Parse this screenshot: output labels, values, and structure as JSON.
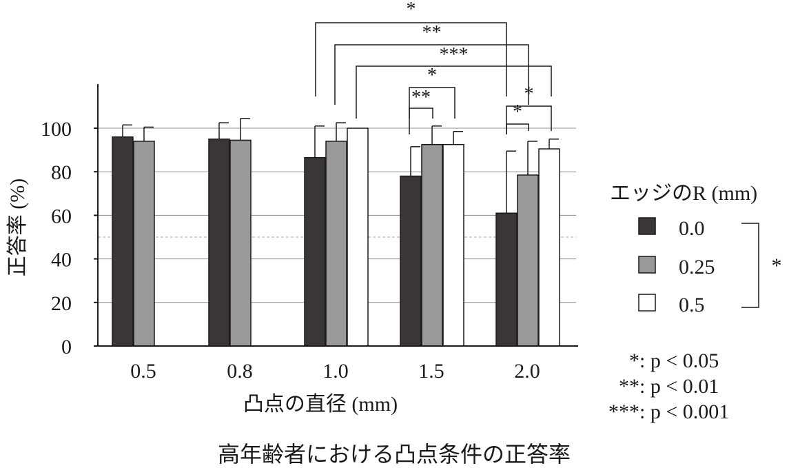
{
  "chart_data": {
    "type": "bar",
    "title": "高年齢者における凸点条件の正答率",
    "xlabel": "凸点の直径 (mm)",
    "ylabel": "正答率 (%)",
    "ylim": [
      0,
      120
    ],
    "yticks": [
      "0",
      "20",
      "40",
      "60",
      "80",
      "100"
    ],
    "ytick_values": [
      0,
      20,
      40,
      60,
      80,
      100
    ],
    "chance_line": 50,
    "categories": [
      "0.5",
      "0.8",
      "1.0",
      "1.5",
      "2.0"
    ],
    "legend_title": "エッジのR (mm)",
    "series": [
      {
        "name": "0.0",
        "color": "#3a3536",
        "values": [
          96,
          95,
          86.5,
          78,
          61
        ],
        "errors": [
          5.5,
          7.5,
          14.5,
          13.5,
          28.5
        ]
      },
      {
        "name": "0.25",
        "color": "#999999",
        "values": [
          94,
          94.5,
          94,
          92.5,
          78.5
        ],
        "errors": [
          6.5,
          10,
          8.5,
          8.5,
          15.5
        ]
      },
      {
        "name": "0.5",
        "color": "#ffffff",
        "values": [
          null,
          null,
          100,
          92.5,
          90.5
        ],
        "errors": [
          null,
          null,
          0,
          6,
          4.5
        ]
      }
    ],
    "legend_bracket_mark": "*",
    "significance": [
      {
        "mark": "*",
        "from": "1.0 / 0.0",
        "to": "2.0 / 0.0"
      },
      {
        "mark": "**",
        "from": "1.0 / 0.25",
        "to": "2.0 / 0.25"
      },
      {
        "mark": "***",
        "from": "1.0 / 0.5",
        "to": "2.0 / 0.5"
      },
      {
        "mark": "*",
        "from": "1.5 / 0.0",
        "to": "1.5 / 0.5"
      },
      {
        "mark": "**",
        "from": "1.5 / 0.0",
        "to": "1.5 / 0.25"
      },
      {
        "mark": "*",
        "from": "2.0 / 0.0",
        "to": "2.0 / 0.5"
      },
      {
        "mark": "*",
        "from": "2.0 / 0.0",
        "to": "2.0 / 0.25"
      }
    ],
    "p_notes": [
      {
        "stars": "*",
        "text": ": p < 0.05"
      },
      {
        "stars": "**",
        "text": ": p < 0.01"
      },
      {
        "stars": "***",
        "text": ": p < 0.001"
      }
    ]
  }
}
